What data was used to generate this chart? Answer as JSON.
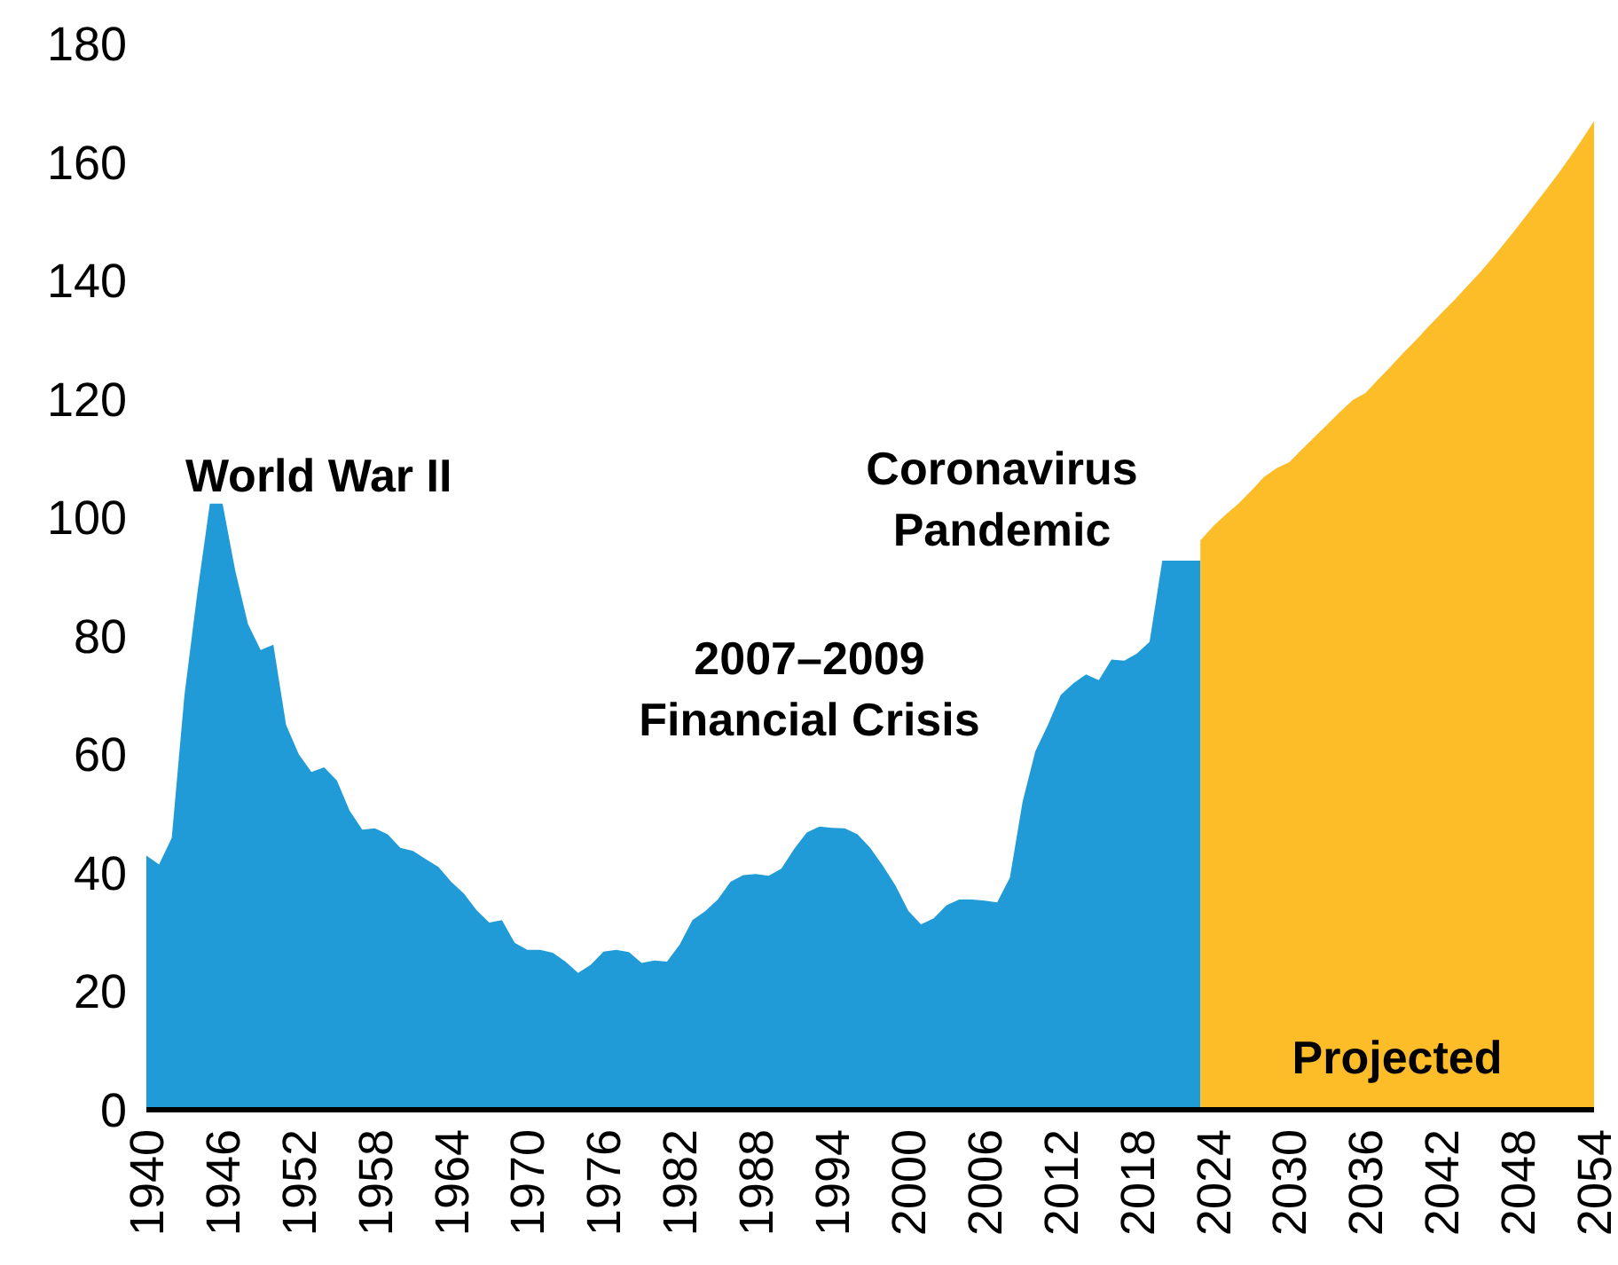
{
  "chart_data": {
    "type": "area",
    "series": [
      {
        "color": "#209bd7",
        "x": [
          1940,
          1941,
          1942,
          1943,
          1944,
          1945,
          1946,
          1947,
          1948,
          1949,
          1950,
          1951,
          1952,
          1953,
          1954,
          1955,
          1956,
          1957,
          1958,
          1959,
          1960,
          1961,
          1962,
          1963,
          1964,
          1965,
          1966,
          1967,
          1968,
          1969,
          1970,
          1971,
          1972,
          1973,
          1974,
          1975,
          1976,
          1977,
          1978,
          1979,
          1980,
          1981,
          1982,
          1983,
          1984,
          1985,
          1986,
          1987,
          1988,
          1989,
          1990,
          1991,
          1992,
          1993,
          1994,
          1995,
          1996,
          1997,
          1998,
          1999,
          2000,
          2001,
          2002,
          2003,
          2004,
          2005,
          2006,
          2007,
          2008,
          2009,
          2010,
          2011,
          2012,
          2013,
          2014,
          2015,
          2016,
          2017,
          2018,
          2019,
          2020,
          2021,
          2022,
          2023
        ],
        "values": [
          42.9,
          41.4,
          45.9,
          70,
          87,
          102.3,
          102.3,
          91,
          82,
          77.6,
          78.5,
          65,
          60,
          57,
          57.8,
          55.6,
          50.5,
          47.3,
          47.5,
          46.5,
          44.2,
          43.7,
          42.3,
          41,
          38.5,
          36.5,
          33.7,
          31.6,
          32,
          28.2,
          27,
          27,
          26.5,
          25,
          23.1,
          24.5,
          26.7,
          27,
          26.6,
          24.8,
          25.2,
          25,
          27.9,
          32,
          33.5,
          35.5,
          38.5,
          39.6,
          39.8,
          39.5,
          40.7,
          44,
          46.8,
          47.8,
          47.6,
          47.5,
          46.5,
          44.2,
          41.2,
          37.8,
          33.6,
          31.3,
          32.3,
          34.5,
          35.5,
          35.5,
          35.3,
          35,
          39.2,
          52,
          60.5,
          65,
          70,
          72,
          73.5,
          72.5,
          76,
          75.8,
          77,
          79,
          92.7,
          92.7,
          92.7,
          92.7
        ]
      },
      {
        "color": "#fdbd28",
        "x": [
          2023,
          2024,
          2025,
          2026,
          2027,
          2028,
          2029,
          2030,
          2031,
          2032,
          2033,
          2034,
          2035,
          2036,
          2037,
          2038,
          2039,
          2040,
          2041,
          2042,
          2043,
          2044,
          2045,
          2046,
          2047,
          2048,
          2049,
          2050,
          2051,
          2052,
          2053,
          2054
        ],
        "values": [
          96.1,
          98.5,
          100.5,
          102.3,
          104.5,
          106.8,
          108.3,
          109.3,
          111.5,
          113.6,
          115.7,
          117.8,
          119.8,
          121,
          123.3,
          125.5,
          127.8,
          130,
          132.3,
          134.5,
          136.7,
          139,
          141.3,
          143.8,
          146.4,
          149.1,
          151.9,
          154.7,
          157.5,
          160.5,
          163.6,
          166.9
        ]
      }
    ],
    "xlim": [
      1940,
      2054
    ],
    "xticks": [
      1940,
      1946,
      1952,
      1958,
      1964,
      1970,
      1976,
      1982,
      1988,
      1994,
      2000,
      2006,
      2012,
      2018,
      2024,
      2030,
      2036,
      2042,
      2048,
      2054
    ],
    "ylim": [
      0,
      180
    ],
    "yticks": [
      0,
      20,
      40,
      60,
      80,
      100,
      120,
      140,
      160,
      180
    ],
    "grid": false,
    "annotations": [
      "World War II",
      "2007–2009\nFinancial Crisis",
      "Coronavirus\nPandemic",
      "Projected"
    ]
  }
}
